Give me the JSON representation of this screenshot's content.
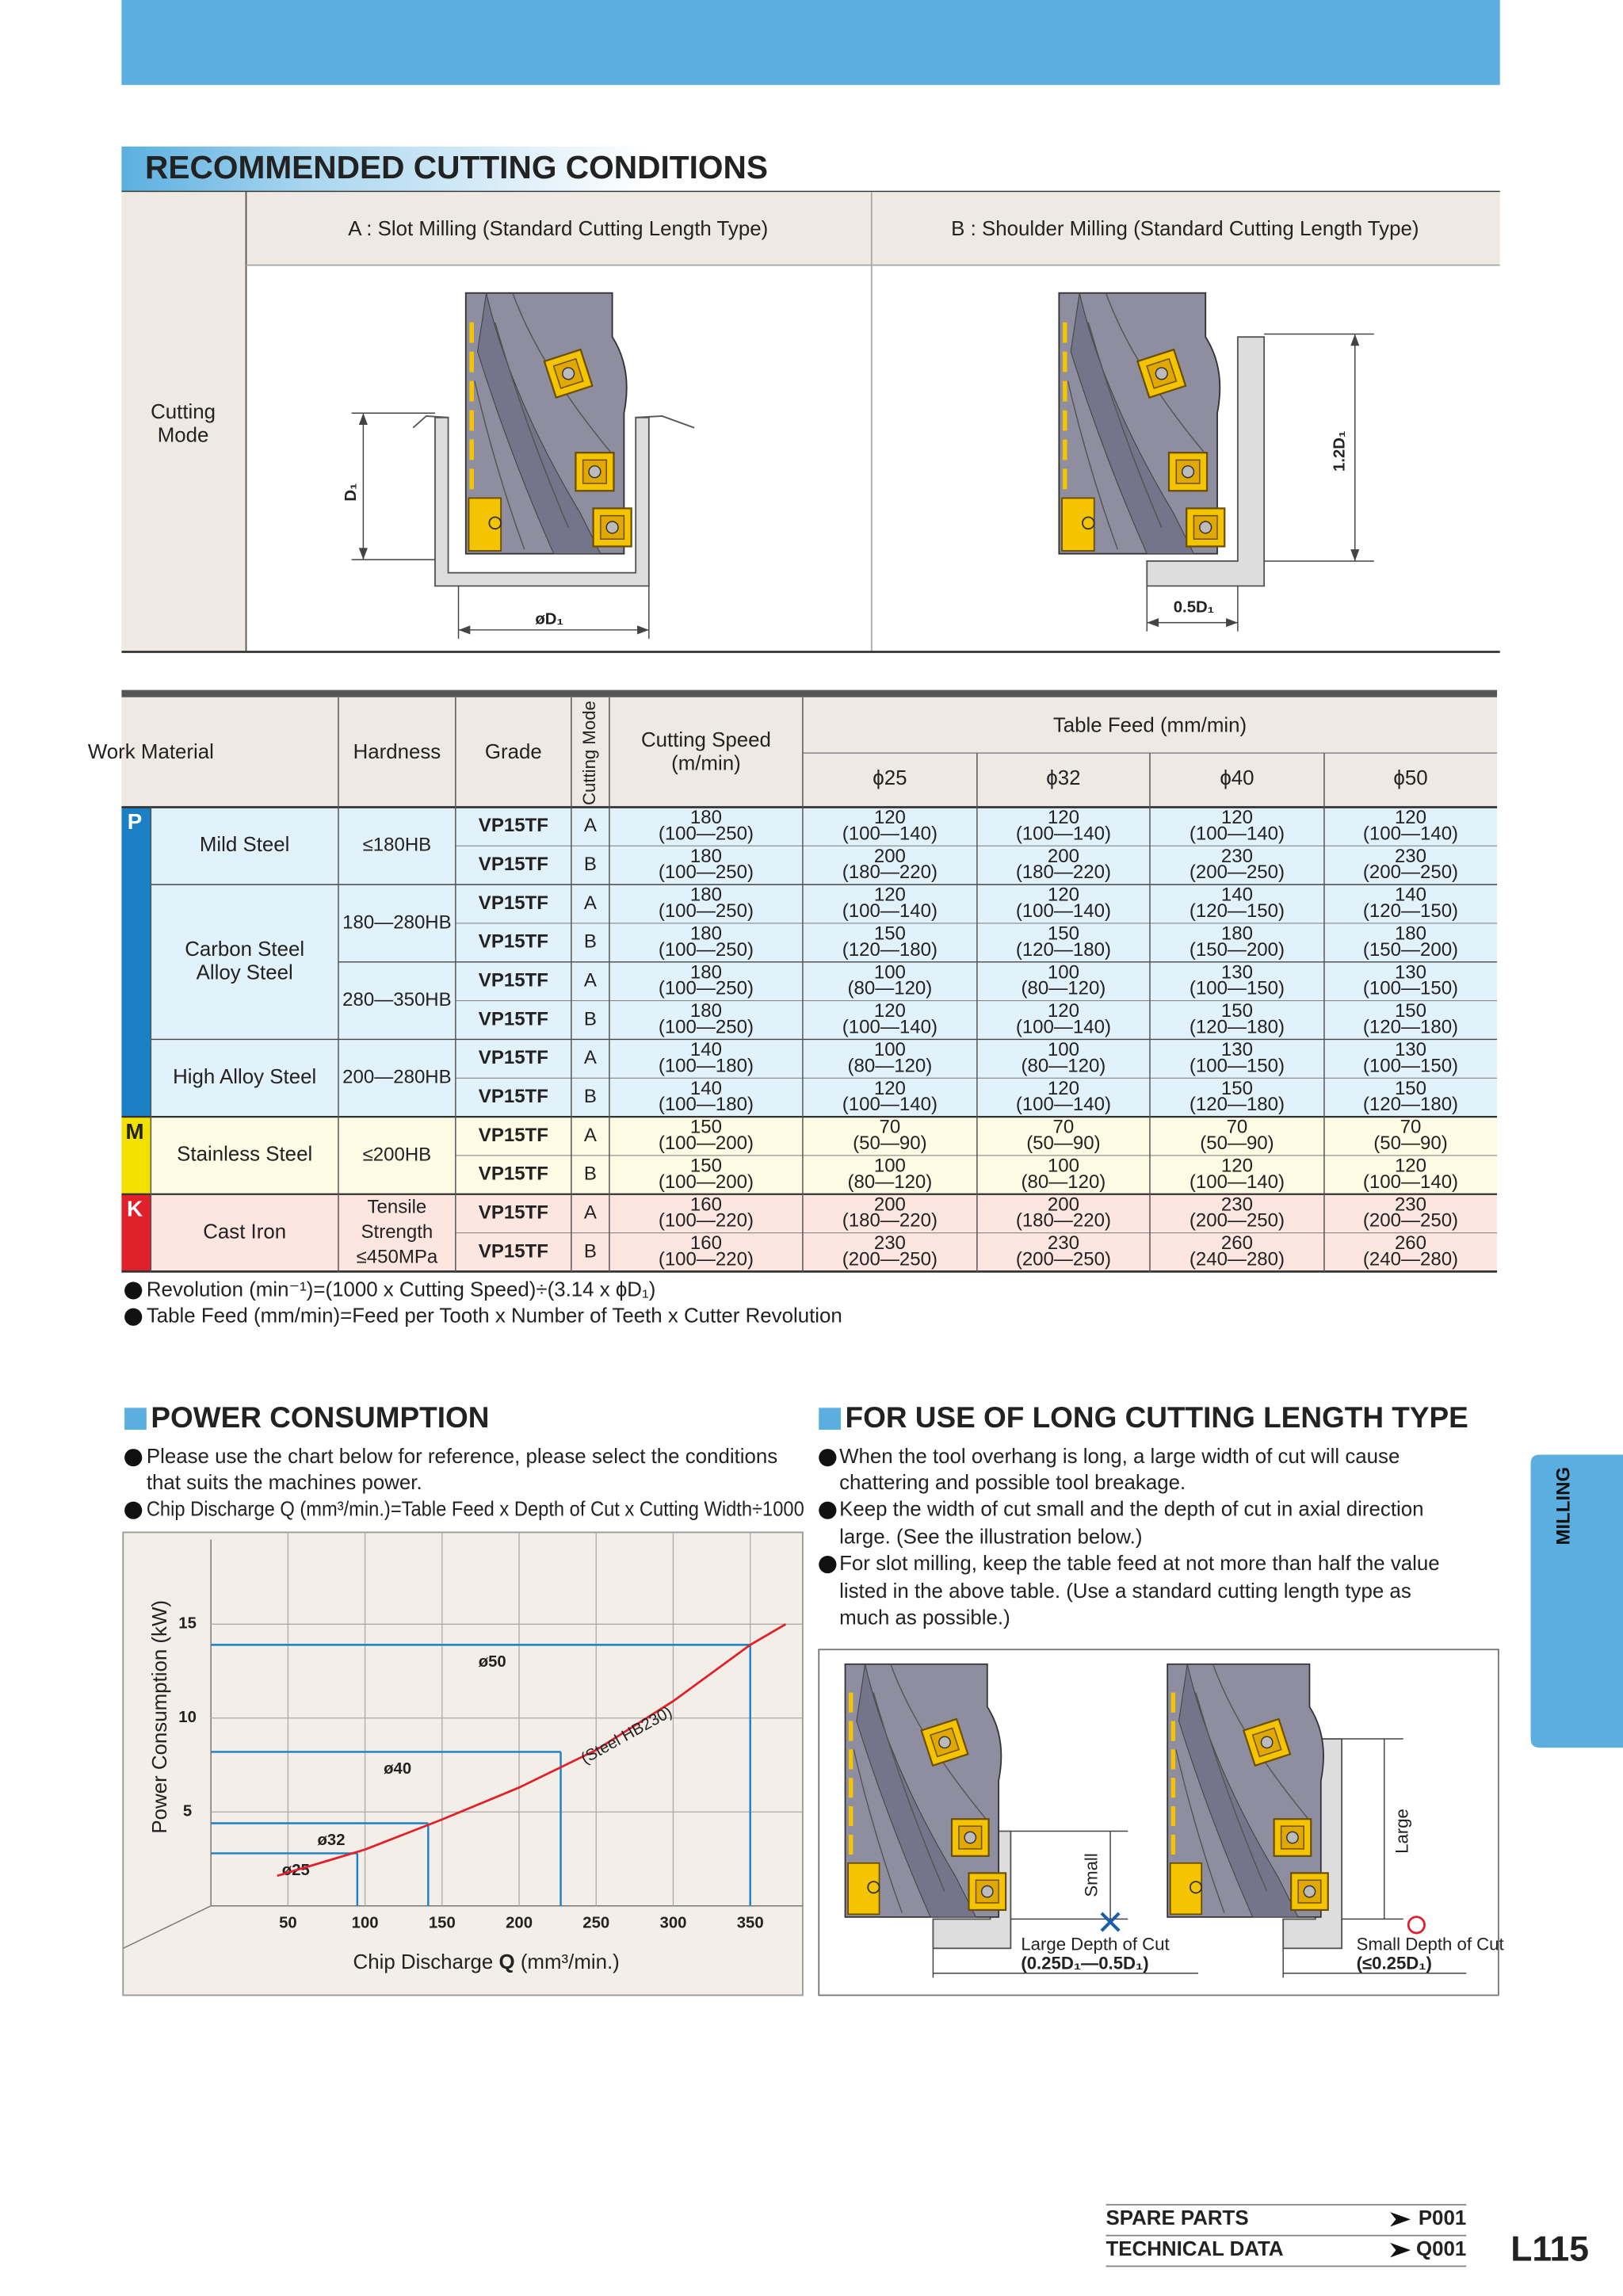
{
  "header": {
    "title": "RECOMMENDED CUTTING CONDITIONS"
  },
  "cutting_mode": {
    "label": [
      "Cutting",
      "Mode"
    ],
    "a": {
      "title": "A : Slot Milling (Standard Cutting Length Type)",
      "depth": "D₁",
      "width": "øD₁"
    },
    "b": {
      "title": "B : Shoulder Milling (Standard Cutting Length Type)",
      "depth": "1.2D₁",
      "width": "0.5D₁"
    }
  },
  "table": {
    "headers": {
      "work_material": "Work Material",
      "hardness": "Hardness",
      "grade": "Grade",
      "cutting_mode": "Cutting Mode",
      "cutting_speed": [
        "Cutting Speed",
        "(m/min)"
      ],
      "table_feed": "Table Feed (mm/min)",
      "diameters": [
        "ϕ25",
        "ϕ32",
        "ϕ40",
        "ϕ50"
      ]
    },
    "classes": [
      {
        "label": "P",
        "color": "#1a7fc4",
        "fill": "#e1f2fb",
        "materials": [
          {
            "name": [
              "Mild Steel"
            ],
            "hardness": [
              {
                "label": [
                  "≤180HB"
                ],
                "rows": [
                  {
                    "grade": "VP15TF",
                    "mode": "A",
                    "speed": [
                      "180",
                      "(100—250)"
                    ],
                    "feed": [
                      [
                        "120",
                        "(100—140)"
                      ],
                      [
                        "120",
                        "(100—140)"
                      ],
                      [
                        "120",
                        "(100—140)"
                      ],
                      [
                        "120",
                        "(100—140)"
                      ]
                    ]
                  },
                  {
                    "grade": "VP15TF",
                    "mode": "B",
                    "speed": [
                      "180",
                      "(100—250)"
                    ],
                    "feed": [
                      [
                        "200",
                        "(180—220)"
                      ],
                      [
                        "200",
                        "(180—220)"
                      ],
                      [
                        "230",
                        "(200—250)"
                      ],
                      [
                        "230",
                        "(200—250)"
                      ]
                    ]
                  }
                ]
              }
            ]
          },
          {
            "name": [
              "Carbon Steel",
              "Alloy Steel"
            ],
            "hardness": [
              {
                "label": [
                  "180—280HB"
                ],
                "rows": [
                  {
                    "grade": "VP15TF",
                    "mode": "A",
                    "speed": [
                      "180",
                      "(100—250)"
                    ],
                    "feed": [
                      [
                        "120",
                        "(100—140)"
                      ],
                      [
                        "120",
                        "(100—140)"
                      ],
                      [
                        "140",
                        "(120—150)"
                      ],
                      [
                        "140",
                        "(120—150)"
                      ]
                    ]
                  },
                  {
                    "grade": "VP15TF",
                    "mode": "B",
                    "speed": [
                      "180",
                      "(100—250)"
                    ],
                    "feed": [
                      [
                        "150",
                        "(120—180)"
                      ],
                      [
                        "150",
                        "(120—180)"
                      ],
                      [
                        "180",
                        "(150—200)"
                      ],
                      [
                        "180",
                        "(150—200)"
                      ]
                    ]
                  }
                ]
              },
              {
                "label": [
                  "280—350HB"
                ],
                "rows": [
                  {
                    "grade": "VP15TF",
                    "mode": "A",
                    "speed": [
                      "180",
                      "(100—250)"
                    ],
                    "feed": [
                      [
                        "100",
                        "(80—120)"
                      ],
                      [
                        "100",
                        "(80—120)"
                      ],
                      [
                        "130",
                        "(100—150)"
                      ],
                      [
                        "130",
                        "(100—150)"
                      ]
                    ]
                  },
                  {
                    "grade": "VP15TF",
                    "mode": "B",
                    "speed": [
                      "180",
                      "(100—250)"
                    ],
                    "feed": [
                      [
                        "120",
                        "(100—140)"
                      ],
                      [
                        "120",
                        "(100—140)"
                      ],
                      [
                        "150",
                        "(120—180)"
                      ],
                      [
                        "150",
                        "(120—180)"
                      ]
                    ]
                  }
                ]
              }
            ]
          },
          {
            "name": [
              "High Alloy Steel"
            ],
            "hardness": [
              {
                "label": [
                  "200—280HB"
                ],
                "rows": [
                  {
                    "grade": "VP15TF",
                    "mode": "A",
                    "speed": [
                      "140",
                      "(100—180)"
                    ],
                    "feed": [
                      [
                        "100",
                        "(80—120)"
                      ],
                      [
                        "100",
                        "(80—120)"
                      ],
                      [
                        "130",
                        "(100—150)"
                      ],
                      [
                        "130",
                        "(100—150)"
                      ]
                    ]
                  },
                  {
                    "grade": "VP15TF",
                    "mode": "B",
                    "speed": [
                      "140",
                      "(100—180)"
                    ],
                    "feed": [
                      [
                        "120",
                        "(100—140)"
                      ],
                      [
                        "120",
                        "(100—140)"
                      ],
                      [
                        "150",
                        "(120—180)"
                      ],
                      [
                        "150",
                        "(120—180)"
                      ]
                    ]
                  }
                ]
              }
            ]
          }
        ]
      },
      {
        "label": "M",
        "color": "#f2e100",
        "fill": "#fdfbe4",
        "materials": [
          {
            "name": [
              "Stainless Steel"
            ],
            "hardness": [
              {
                "label": [
                  "≤200HB"
                ],
                "rows": [
                  {
                    "grade": "VP15TF",
                    "mode": "A",
                    "speed": [
                      "150",
                      "(100—200)"
                    ],
                    "feed": [
                      [
                        "70",
                        "(50—90)"
                      ],
                      [
                        "70",
                        "(50—90)"
                      ],
                      [
                        "70",
                        "(50—90)"
                      ],
                      [
                        "70",
                        "(50—90)"
                      ]
                    ]
                  },
                  {
                    "grade": "VP15TF",
                    "mode": "B",
                    "speed": [
                      "150",
                      "(100—200)"
                    ],
                    "feed": [
                      [
                        "100",
                        "(80—120)"
                      ],
                      [
                        "100",
                        "(80—120)"
                      ],
                      [
                        "120",
                        "(100—140)"
                      ],
                      [
                        "120",
                        "(100—140)"
                      ]
                    ]
                  }
                ]
              }
            ]
          }
        ]
      },
      {
        "label": "K",
        "color": "#e0202a",
        "fill": "#fde6e0",
        "materials": [
          {
            "name": [
              "Cast Iron"
            ],
            "hardness": [
              {
                "label": [
                  "Tensile",
                  "Strength",
                  "≤450MPa"
                ],
                "rows": [
                  {
                    "grade": "VP15TF",
                    "mode": "A",
                    "speed": [
                      "160",
                      "(100—220)"
                    ],
                    "feed": [
                      [
                        "200",
                        "(180—220)"
                      ],
                      [
                        "200",
                        "(180—220)"
                      ],
                      [
                        "230",
                        "(200—250)"
                      ],
                      [
                        "230",
                        "(200—250)"
                      ]
                    ]
                  },
                  {
                    "grade": "VP15TF",
                    "mode": "B",
                    "speed": [
                      "160",
                      "(100—220)"
                    ],
                    "feed": [
                      [
                        "230",
                        "(200—250)"
                      ],
                      [
                        "230",
                        "(200—250)"
                      ],
                      [
                        "260",
                        "(240—280)"
                      ],
                      [
                        "260",
                        "(240—280)"
                      ]
                    ]
                  }
                ]
              }
            ]
          }
        ]
      }
    ]
  },
  "notes": [
    "Revolution (min⁻¹)=(1000 x Cutting Speed)÷(3.14 x ϕD₁)",
    "Table Feed (mm/min)=Feed per Tooth x Number of Teeth x Cutter Revolution"
  ],
  "power": {
    "title": "POWER CONSUMPTION",
    "bullets": [
      [
        "Please use the chart below for reference, please select the conditions",
        "that suits the machines power."
      ],
      [
        "Chip Discharge Q (mm³/min.)=Table Feed x Depth of Cut x Cutting Width÷1000"
      ]
    ],
    "chart": {
      "type": "line",
      "y_label": "Power Consumption (kW)",
      "x_label": [
        "Chip Discharge ",
        "Q",
        " (mm³/min.)"
      ],
      "xlim": [
        0,
        385
      ],
      "xticks": [
        50,
        100,
        150,
        200,
        250,
        300,
        350
      ],
      "ylim": [
        0,
        19.5
      ],
      "yticks": [
        5,
        10,
        15
      ],
      "grid": true,
      "curve": {
        "name": "(Steel HB230)",
        "color": "#e0202a",
        "x": [
          43,
          100,
          150,
          200,
          250,
          300,
          350,
          373
        ],
        "values": [
          1.6,
          3.0,
          4.6,
          6.3,
          8.3,
          10.9,
          13.9,
          15
        ]
      },
      "guides": {
        "color": "#1a7fc4",
        "points": [
          {
            "label": "ø25",
            "x": 95,
            "y": 2.8
          },
          {
            "label": "ø32",
            "x": 141,
            "y": 4.4
          },
          {
            "label": "ø40",
            "x": 227,
            "y": 8.2
          },
          {
            "label": "ø50",
            "x": 350,
            "y": 13.9
          }
        ]
      }
    }
  },
  "long": {
    "title": "FOR USE OF LONG CUTTING LENGTH TYPE",
    "bullets": [
      [
        "When the tool overhang is long, a large width of cut will cause",
        "chattering and possible tool breakage."
      ],
      [
        "Keep the width of cut small and the depth of cut in axial direction",
        "large. (See the illustration below.)"
      ],
      [
        "For slot milling, keep the table feed at not more than half the value",
        "listed in the above table. (Use a standard cutting length type as",
        "much as possible.)"
      ]
    ],
    "bad": {
      "width": "Small",
      "depth": "Large Depth of Cut",
      "range": "(0.25D₁—0.5D₁)"
    },
    "good": {
      "width": "Large",
      "depth": "Small Depth of Cut",
      "range": "(≤0.25D₁)"
    }
  },
  "side_tab": "MILLING",
  "footer": {
    "links": [
      {
        "label": "SPARE PARTS",
        "ref": "P001"
      },
      {
        "label": "TECHNICAL DATA",
        "ref": "Q001"
      }
    ],
    "page": "L115"
  }
}
